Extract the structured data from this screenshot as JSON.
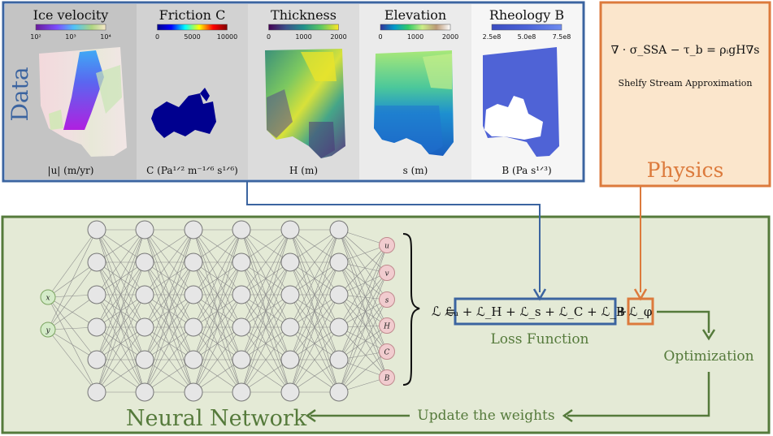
{
  "data_panel": {
    "title": "Data",
    "fields": [
      {
        "title": "Ice velocity",
        "ticks": [
          "10²",
          "10³",
          "10⁴"
        ],
        "unit": "|u| (m/yr)",
        "colormap": "purple-blue-green-yellow",
        "background": "#c4c4c4"
      },
      {
        "title": "Friction C",
        "ticks": [
          "0",
          "5000",
          "10000"
        ],
        "unit": "C (Pa¹ᐟ² m⁻¹ᐟ⁶ s¹ᐟ⁶)",
        "colormap": "jet",
        "background": "#d2d2d2"
      },
      {
        "title": "Thickness",
        "ticks": [
          "0",
          "1000",
          "2000"
        ],
        "unit": "H (m)",
        "colormap": "viridis",
        "background": "#dcdcdc"
      },
      {
        "title": "Elevation",
        "ticks": [
          "0",
          "1000",
          "2000"
        ],
        "unit": "s (m)",
        "colormap": "terrain",
        "background": "#ebebeb"
      },
      {
        "title": "Rheology B",
        "ticks": [
          "2.5e8",
          "5.0e8",
          "7.5e8"
        ],
        "unit": "B (Pa s¹ᐟ³)",
        "colormap": "blue",
        "background": "#f6f6f6"
      }
    ]
  },
  "physics_panel": {
    "title": "Physics",
    "equation": "∇ · σ_SSA − τ_b = ρᵢgH∇s",
    "subtitle": "Shelfy Stream Approximation"
  },
  "network_panel": {
    "title": "Neural Network",
    "inputs": [
      "x",
      "y"
    ],
    "hidden_layers": 6,
    "hidden_neurons_per_layer": 6,
    "outputs": [
      "u",
      "v",
      "s",
      "H",
      "C",
      "B"
    ]
  },
  "loss": {
    "lhs": "ℒ =",
    "data_terms": "ℒᵤ + ℒ_H + ℒ_s + ℒ_C + ℒ_B",
    "plus": "+",
    "physics_term": "ℒ_φ",
    "label": "Loss Function"
  },
  "flow": {
    "optimization": "Optimization",
    "update": "Update the weights"
  },
  "colors": {
    "data_border": "#3b64a0",
    "physics_border": "#dc7a3c",
    "physics_fill": "#fbe6cc",
    "network_border": "#557a3b",
    "network_fill": "#e4ead6",
    "green_text": "#557a3b",
    "input_node": "#d4ebc8",
    "output_node": "#f1cccf"
  }
}
